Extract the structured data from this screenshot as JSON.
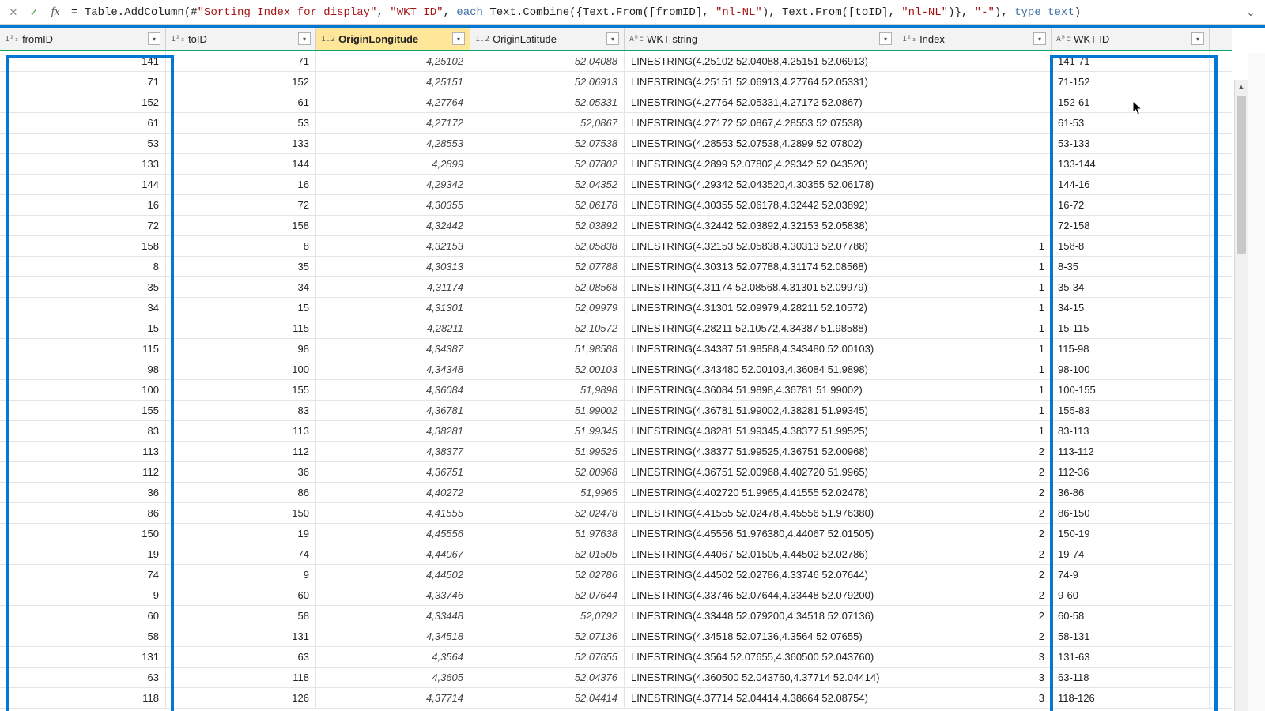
{
  "formula_bar": {
    "fx_label": "fx",
    "formula_html": "= Table.AddColumn(#<span class='kw-str'>\"Sorting Index for display\"</span>, <span class='kw-str'>\"WKT ID\"</span>, <span class='kw-each'>each</span> Text.Combine({Text.From([fromID], <span class='kw-str'>\"nl-NL\"</span>), Text.From([toID], <span class='kw-str'>\"nl-NL\"</span>)}, <span class='kw-str'>\"-\"</span>), <span class='kw-type'>type</span> <span class='kw-type'>text</span>)"
  },
  "columns": [
    {
      "key": "fromID",
      "label": "fromID",
      "type_icon": "1²₃",
      "cls": "c-from",
      "align": "num",
      "selected": false
    },
    {
      "key": "toID",
      "label": "toID",
      "type_icon": "1²₃",
      "cls": "c-to",
      "align": "num",
      "selected": false
    },
    {
      "key": "OriginLongitude",
      "label": "OriginLongitude",
      "type_icon": "1.2",
      "cls": "c-olon",
      "align": "numit",
      "selected": true
    },
    {
      "key": "OriginLatitude",
      "label": "OriginLatitude",
      "type_icon": "1.2",
      "cls": "c-olat",
      "align": "numit",
      "selected": false
    },
    {
      "key": "WKTstring",
      "label": "WKT string",
      "type_icon": "Aᴮc",
      "cls": "c-wkt",
      "align": "txt",
      "selected": false
    },
    {
      "key": "Index",
      "label": "Index",
      "type_icon": "1²₃",
      "cls": "c-idx",
      "align": "num",
      "selected": false
    },
    {
      "key": "WKTID",
      "label": "WKT ID",
      "type_icon": "Aᴮc",
      "cls": "c-wktid",
      "align": "txt",
      "selected": false
    }
  ],
  "rows": [
    {
      "fromID": "141",
      "toID": "71",
      "OriginLongitude": "4,25102",
      "OriginLatitude": "52,04088",
      "WKTstring": "LINESTRING(4.25102 52.04088,4.25151 52.06913)",
      "Index": "",
      "WKTID": "141-71"
    },
    {
      "fromID": "71",
      "toID": "152",
      "OriginLongitude": "4,25151",
      "OriginLatitude": "52,06913",
      "WKTstring": "LINESTRING(4.25151 52.06913,4.27764 52.05331)",
      "Index": "",
      "WKTID": "71-152"
    },
    {
      "fromID": "152",
      "toID": "61",
      "OriginLongitude": "4,27764",
      "OriginLatitude": "52,05331",
      "WKTstring": "LINESTRING(4.27764 52.05331,4.27172 52.0867)",
      "Index": "",
      "WKTID": "152-61"
    },
    {
      "fromID": "61",
      "toID": "53",
      "OriginLongitude": "4,27172",
      "OriginLatitude": "52,0867",
      "WKTstring": "LINESTRING(4.27172 52.0867,4.28553 52.07538)",
      "Index": "",
      "WKTID": "61-53"
    },
    {
      "fromID": "53",
      "toID": "133",
      "OriginLongitude": "4,28553",
      "OriginLatitude": "52,07538",
      "WKTstring": "LINESTRING(4.28553 52.07538,4.2899 52.07802)",
      "Index": "",
      "WKTID": "53-133"
    },
    {
      "fromID": "133",
      "toID": "144",
      "OriginLongitude": "4,2899",
      "OriginLatitude": "52,07802",
      "WKTstring": "LINESTRING(4.2899 52.07802,4.29342 52.043520)",
      "Index": "",
      "WKTID": "133-144"
    },
    {
      "fromID": "144",
      "toID": "16",
      "OriginLongitude": "4,29342",
      "OriginLatitude": "52,04352",
      "WKTstring": "LINESTRING(4.29342 52.043520,4.30355 52.06178)",
      "Index": "",
      "WKTID": "144-16"
    },
    {
      "fromID": "16",
      "toID": "72",
      "OriginLongitude": "4,30355",
      "OriginLatitude": "52,06178",
      "WKTstring": "LINESTRING(4.30355 52.06178,4.32442 52.03892)",
      "Index": "",
      "WKTID": "16-72"
    },
    {
      "fromID": "72",
      "toID": "158",
      "OriginLongitude": "4,32442",
      "OriginLatitude": "52,03892",
      "WKTstring": "LINESTRING(4.32442 52.03892,4.32153 52.05838)",
      "Index": "",
      "WKTID": "72-158"
    },
    {
      "fromID": "158",
      "toID": "8",
      "OriginLongitude": "4,32153",
      "OriginLatitude": "52,05838",
      "WKTstring": "LINESTRING(4.32153 52.05838,4.30313 52.07788)",
      "Index": "1",
      "WKTID": "158-8"
    },
    {
      "fromID": "8",
      "toID": "35",
      "OriginLongitude": "4,30313",
      "OriginLatitude": "52,07788",
      "WKTstring": "LINESTRING(4.30313 52.07788,4.31174 52.08568)",
      "Index": "1",
      "WKTID": "8-35"
    },
    {
      "fromID": "35",
      "toID": "34",
      "OriginLongitude": "4,31174",
      "OriginLatitude": "52,08568",
      "WKTstring": "LINESTRING(4.31174 52.08568,4.31301 52.09979)",
      "Index": "1",
      "WKTID": "35-34"
    },
    {
      "fromID": "34",
      "toID": "15",
      "OriginLongitude": "4,31301",
      "OriginLatitude": "52,09979",
      "WKTstring": "LINESTRING(4.31301 52.09979,4.28211 52.10572)",
      "Index": "1",
      "WKTID": "34-15"
    },
    {
      "fromID": "15",
      "toID": "115",
      "OriginLongitude": "4,28211",
      "OriginLatitude": "52,10572",
      "WKTstring": "LINESTRING(4.28211 52.10572,4.34387 51.98588)",
      "Index": "1",
      "WKTID": "15-115"
    },
    {
      "fromID": "115",
      "toID": "98",
      "OriginLongitude": "4,34387",
      "OriginLatitude": "51,98588",
      "WKTstring": "LINESTRING(4.34387 51.98588,4.343480 52.00103)",
      "Index": "1",
      "WKTID": "115-98"
    },
    {
      "fromID": "98",
      "toID": "100",
      "OriginLongitude": "4,34348",
      "OriginLatitude": "52,00103",
      "WKTstring": "LINESTRING(4.343480 52.00103,4.36084 51.9898)",
      "Index": "1",
      "WKTID": "98-100"
    },
    {
      "fromID": "100",
      "toID": "155",
      "OriginLongitude": "4,36084",
      "OriginLatitude": "51,9898",
      "WKTstring": "LINESTRING(4.36084 51.9898,4.36781 51.99002)",
      "Index": "1",
      "WKTID": "100-155"
    },
    {
      "fromID": "155",
      "toID": "83",
      "OriginLongitude": "4,36781",
      "OriginLatitude": "51,99002",
      "WKTstring": "LINESTRING(4.36781 51.99002,4.38281 51.99345)",
      "Index": "1",
      "WKTID": "155-83"
    },
    {
      "fromID": "83",
      "toID": "113",
      "OriginLongitude": "4,38281",
      "OriginLatitude": "51,99345",
      "WKTstring": "LINESTRING(4.38281 51.99345,4.38377 51.99525)",
      "Index": "1",
      "WKTID": "83-113"
    },
    {
      "fromID": "113",
      "toID": "112",
      "OriginLongitude": "4,38377",
      "OriginLatitude": "51,99525",
      "WKTstring": "LINESTRING(4.38377 51.99525,4.36751 52.00968)",
      "Index": "2",
      "WKTID": "113-112"
    },
    {
      "fromID": "112",
      "toID": "36",
      "OriginLongitude": "4,36751",
      "OriginLatitude": "52,00968",
      "WKTstring": "LINESTRING(4.36751 52.00968,4.402720 51.9965)",
      "Index": "2",
      "WKTID": "112-36"
    },
    {
      "fromID": "36",
      "toID": "86",
      "OriginLongitude": "4,40272",
      "OriginLatitude": "51,9965",
      "WKTstring": "LINESTRING(4.402720 51.9965,4.41555 52.02478)",
      "Index": "2",
      "WKTID": "36-86"
    },
    {
      "fromID": "86",
      "toID": "150",
      "OriginLongitude": "4,41555",
      "OriginLatitude": "52,02478",
      "WKTstring": "LINESTRING(4.41555 52.02478,4.45556 51.976380)",
      "Index": "2",
      "WKTID": "86-150"
    },
    {
      "fromID": "150",
      "toID": "19",
      "OriginLongitude": "4,45556",
      "OriginLatitude": "51,97638",
      "WKTstring": "LINESTRING(4.45556 51.976380,4.44067 52.01505)",
      "Index": "2",
      "WKTID": "150-19"
    },
    {
      "fromID": "19",
      "toID": "74",
      "OriginLongitude": "4,44067",
      "OriginLatitude": "52,01505",
      "WKTstring": "LINESTRING(4.44067 52.01505,4.44502 52.02786)",
      "Index": "2",
      "WKTID": "19-74"
    },
    {
      "fromID": "74",
      "toID": "9",
      "OriginLongitude": "4,44502",
      "OriginLatitude": "52,02786",
      "WKTstring": "LINESTRING(4.44502 52.02786,4.33746 52.07644)",
      "Index": "2",
      "WKTID": "74-9"
    },
    {
      "fromID": "9",
      "toID": "60",
      "OriginLongitude": "4,33746",
      "OriginLatitude": "52,07644",
      "WKTstring": "LINESTRING(4.33746 52.07644,4.33448 52.079200)",
      "Index": "2",
      "WKTID": "9-60"
    },
    {
      "fromID": "60",
      "toID": "58",
      "OriginLongitude": "4,33448",
      "OriginLatitude": "52,0792",
      "WKTstring": "LINESTRING(4.33448 52.079200,4.34518 52.07136)",
      "Index": "2",
      "WKTID": "60-58"
    },
    {
      "fromID": "58",
      "toID": "131",
      "OriginLongitude": "4,34518",
      "OriginLatitude": "52,07136",
      "WKTstring": "LINESTRING(4.34518 52.07136,4.3564 52.07655)",
      "Index": "2",
      "WKTID": "58-131"
    },
    {
      "fromID": "131",
      "toID": "63",
      "OriginLongitude": "4,3564",
      "OriginLatitude": "52,07655",
      "WKTstring": "LINESTRING(4.3564 52.07655,4.360500 52.043760)",
      "Index": "3",
      "WKTID": "131-63"
    },
    {
      "fromID": "63",
      "toID": "118",
      "OriginLongitude": "4,3605",
      "OriginLatitude": "52,04376",
      "WKTstring": "LINESTRING(4.360500 52.043760,4.37714 52.04414)",
      "Index": "3",
      "WKTID": "63-118"
    },
    {
      "fromID": "118",
      "toID": "126",
      "OriginLongitude": "4,37714",
      "OriginLatitude": "52,04414",
      "WKTstring": "LINESTRING(4.37714 52.04414,4.38664 52.08754)",
      "Index": "3",
      "WKTID": "118-126"
    }
  ]
}
